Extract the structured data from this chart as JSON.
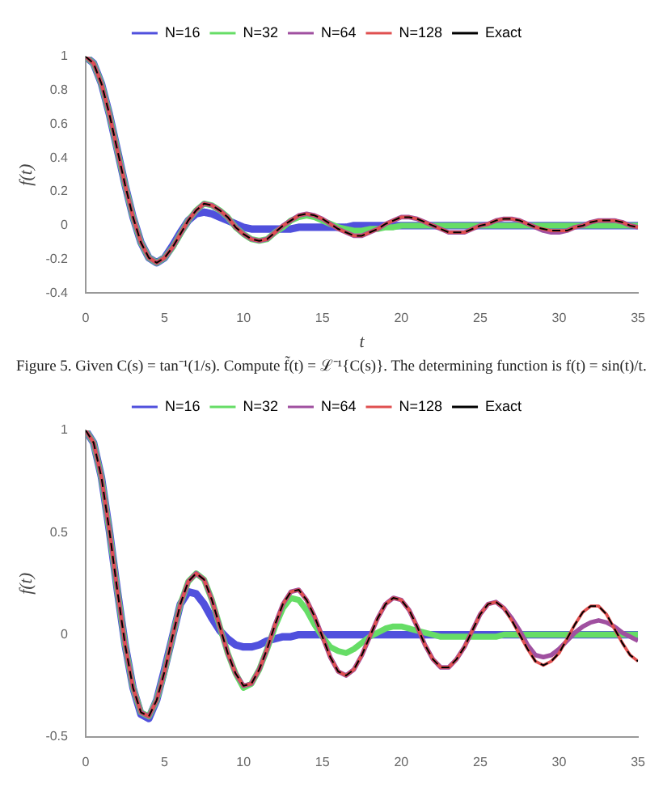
{
  "chart_data": [
    {
      "type": "line",
      "xlabel": "t",
      "ylabel": "f(t)",
      "xlim": [
        0,
        35
      ],
      "xticks": [
        0,
        5,
        10,
        15,
        20,
        25,
        30,
        35
      ],
      "ylim": [
        -0.4,
        1
      ],
      "yticks": [
        -0.4,
        -0.2,
        0,
        0.2,
        0.4,
        0.6,
        0.8,
        1
      ],
      "grid": false,
      "legend": "top",
      "marker": "none",
      "annotations": [
        "Figure 5. Given C(s) = tan⁻¹(1/s). Compute f̃(t) = ℒ⁻¹{C(s)}. The determining function is f(t) = sin(t)/t."
      ],
      "x": [
        0,
        0.5,
        1,
        1.5,
        2,
        2.5,
        3,
        3.5,
        4,
        4.5,
        5,
        5.5,
        6,
        6.5,
        7,
        7.5,
        8,
        8.5,
        9,
        9.5,
        10,
        10.5,
        11,
        11.5,
        12,
        12.5,
        13,
        13.5,
        14,
        14.5,
        15,
        15.5,
        16,
        16.5,
        17,
        17.5,
        18,
        18.5,
        19,
        19.5,
        20,
        20.5,
        21,
        21.5,
        22,
        22.5,
        23,
        23.5,
        24,
        24.5,
        25,
        25.5,
        26,
        26.5,
        27,
        27.5,
        28,
        28.5,
        29,
        29.5,
        30,
        30.5,
        31,
        31.5,
        32,
        32.5,
        33,
        33.5,
        34,
        34.5,
        35
      ],
      "series": [
        {
          "name": "N=16",
          "color": "#5050dd",
          "values": [
            1,
            0.96,
            0.84,
            0.66,
            0.45,
            0.24,
            0.05,
            -0.1,
            -0.19,
            -0.22,
            -0.19,
            -0.12,
            -0.04,
            0.03,
            0.07,
            0.08,
            0.07,
            0.05,
            0.03,
            0.01,
            -0.01,
            -0.02,
            -0.02,
            -0.02,
            -0.02,
            -0.02,
            -0.02,
            -0.01,
            -0.01,
            -0.01,
            -0.01,
            -0.01,
            -0.01,
            -0.01,
            0,
            0,
            0,
            0,
            0,
            0,
            0,
            0,
            0,
            0,
            0,
            0,
            0,
            0,
            0,
            0,
            0,
            0,
            0,
            0,
            0,
            0,
            0,
            0,
            0,
            0,
            0,
            0,
            0,
            0,
            0,
            0,
            0,
            0,
            0,
            0,
            0
          ]
        },
        {
          "name": "N=32",
          "color": "#66dd66",
          "values": [
            1,
            0.96,
            0.84,
            0.66,
            0.45,
            0.24,
            0.05,
            -0.1,
            -0.19,
            -0.22,
            -0.19,
            -0.13,
            -0.05,
            0.03,
            0.09,
            0.13,
            0.12,
            0.09,
            0.05,
            -0.01,
            -0.05,
            -0.08,
            -0.09,
            -0.08,
            -0.04,
            -0.01,
            0.03,
            0.05,
            0.06,
            0.05,
            0.03,
            0.01,
            -0.01,
            -0.02,
            -0.03,
            -0.03,
            -0.02,
            -0.02,
            -0.01,
            -0.01,
            0,
            0,
            0,
            0,
            0,
            0,
            0,
            0,
            0,
            0,
            0,
            0,
            0,
            0,
            0,
            0,
            0,
            0,
            0,
            0,
            0,
            0,
            0,
            0,
            0,
            0,
            0,
            0,
            0,
            0,
            0
          ]
        },
        {
          "name": "N=64",
          "color": "#a050a0",
          "values": [
            1,
            0.96,
            0.84,
            0.66,
            0.45,
            0.24,
            0.05,
            -0.1,
            -0.19,
            -0.22,
            -0.19,
            -0.13,
            -0.05,
            0.03,
            0.09,
            0.13,
            0.12,
            0.09,
            0.05,
            -0.01,
            -0.05,
            -0.08,
            -0.09,
            -0.08,
            -0.04,
            0,
            0.03,
            0.06,
            0.07,
            0.06,
            0.04,
            0.01,
            -0.02,
            -0.04,
            -0.06,
            -0.06,
            -0.04,
            -0.02,
            0.01,
            0.03,
            0.05,
            0.05,
            0.04,
            0.02,
            0,
            -0.02,
            -0.04,
            -0.04,
            -0.04,
            -0.02,
            0,
            0.01,
            0.03,
            0.04,
            0.04,
            0.03,
            0.01,
            -0.01,
            -0.03,
            -0.04,
            -0.04,
            -0.03,
            -0.01,
            0,
            0.02,
            0.03,
            0.03,
            0.03,
            0.02,
            0,
            -0.01
          ]
        },
        {
          "name": "N=128",
          "color": "#e05050",
          "values": [
            1,
            0.96,
            0.84,
            0.66,
            0.45,
            0.24,
            0.05,
            -0.1,
            -0.19,
            -0.22,
            -0.19,
            -0.13,
            -0.05,
            0.03,
            0.09,
            0.13,
            0.12,
            0.09,
            0.05,
            -0.01,
            -0.05,
            -0.08,
            -0.09,
            -0.08,
            -0.04,
            0,
            0.03,
            0.06,
            0.07,
            0.06,
            0.04,
            0.01,
            -0.02,
            -0.04,
            -0.06,
            -0.06,
            -0.04,
            -0.02,
            0.01,
            0.03,
            0.05,
            0.05,
            0.04,
            0.02,
            0,
            -0.02,
            -0.04,
            -0.04,
            -0.04,
            -0.02,
            0,
            0.01,
            0.03,
            0.04,
            0.04,
            0.03,
            0.01,
            -0.01,
            -0.02,
            -0.03,
            -0.03,
            -0.03,
            -0.01,
            0,
            0.02,
            0.03,
            0.03,
            0.03,
            0.02,
            0,
            -0.01
          ]
        },
        {
          "name": "Exact",
          "color": "#000000",
          "line_style": "dashed",
          "values": [
            1,
            0.96,
            0.84,
            0.66,
            0.45,
            0.24,
            0.05,
            -0.1,
            -0.19,
            -0.22,
            -0.19,
            -0.13,
            -0.05,
            0.03,
            0.09,
            0.13,
            0.12,
            0.09,
            0.05,
            -0.01,
            -0.05,
            -0.08,
            -0.09,
            -0.08,
            -0.04,
            0,
            0.03,
            0.06,
            0.07,
            0.06,
            0.04,
            0.01,
            -0.02,
            -0.04,
            -0.06,
            -0.06,
            -0.04,
            -0.02,
            0.01,
            0.03,
            0.05,
            0.05,
            0.04,
            0.02,
            0,
            -0.02,
            -0.04,
            -0.04,
            -0.04,
            -0.02,
            0,
            0.01,
            0.03,
            0.04,
            0.04,
            0.03,
            0.01,
            -0.01,
            -0.02,
            -0.03,
            -0.03,
            -0.03,
            -0.01,
            0,
            0.02,
            0.03,
            0.03,
            0.03,
            0.02,
            0,
            -0.01
          ]
        }
      ]
    },
    {
      "type": "line",
      "ylabel": "f(t)",
      "xlim": [
        0,
        35
      ],
      "xticks": [
        0,
        5,
        10,
        15,
        20,
        25,
        30,
        35
      ],
      "ylim": [
        -0.5,
        1
      ],
      "yticks": [
        -0.5,
        0,
        0.5,
        1
      ],
      "grid": false,
      "legend": "top",
      "marker": "none",
      "x": [
        0,
        0.5,
        1,
        1.5,
        2,
        2.5,
        3,
        3.5,
        4,
        4.5,
        5,
        5.5,
        6,
        6.5,
        7,
        7.5,
        8,
        8.5,
        9,
        9.5,
        10,
        10.5,
        11,
        11.5,
        12,
        12.5,
        13,
        13.5,
        14,
        14.5,
        15,
        15.5,
        16,
        16.5,
        17,
        17.5,
        18,
        18.5,
        19,
        19.5,
        20,
        20.5,
        21,
        21.5,
        22,
        22.5,
        23,
        23.5,
        24,
        24.5,
        25,
        25.5,
        26,
        26.5,
        27,
        27.5,
        28,
        28.5,
        29,
        29.5,
        30,
        30.5,
        31,
        31.5,
        32,
        32.5,
        33,
        33.5,
        34,
        34.5,
        35
      ],
      "series": [
        {
          "name": "N=16",
          "color": "#5050dd",
          "values": [
            1,
            0.94,
            0.77,
            0.51,
            0.22,
            -0.05,
            -0.26,
            -0.39,
            -0.41,
            -0.32,
            -0.17,
            -0.01,
            0.15,
            0.21,
            0.2,
            0.15,
            0.08,
            0.02,
            -0.02,
            -0.05,
            -0.06,
            -0.06,
            -0.05,
            -0.03,
            -0.02,
            -0.01,
            -0.01,
            0,
            0,
            0,
            0,
            0,
            0,
            0,
            0,
            0,
            0,
            0,
            0,
            0,
            0,
            0,
            0,
            0,
            0,
            0,
            0,
            0,
            0,
            0,
            0,
            0,
            0,
            0,
            0,
            0,
            0,
            0,
            0,
            0,
            0,
            0,
            0,
            0,
            0,
            0,
            0,
            0,
            0,
            0,
            0
          ]
        },
        {
          "name": "N=32",
          "color": "#66dd66",
          "values": [
            1,
            0.94,
            0.77,
            0.51,
            0.22,
            -0.05,
            -0.26,
            -0.38,
            -0.4,
            -0.32,
            -0.18,
            -0.01,
            0.15,
            0.26,
            0.3,
            0.27,
            0.17,
            0.04,
            -0.09,
            -0.19,
            -0.26,
            -0.24,
            -0.17,
            -0.07,
            0.04,
            0.13,
            0.18,
            0.17,
            0.12,
            0.05,
            -0.01,
            -0.06,
            -0.08,
            -0.09,
            -0.07,
            -0.04,
            -0.01,
            0.01,
            0.03,
            0.04,
            0.04,
            0.03,
            0.02,
            0.01,
            0,
            -0.01,
            -0.01,
            -0.01,
            -0.01,
            -0.01,
            -0.01,
            -0.01,
            -0.01,
            0,
            0,
            0,
            0,
            0,
            0,
            0,
            0,
            0,
            0,
            0,
            0,
            0,
            0,
            0,
            0,
            0,
            0
          ]
        },
        {
          "name": "N=64",
          "color": "#a050a0",
          "values": [
            1,
            0.94,
            0.77,
            0.51,
            0.22,
            -0.05,
            -0.26,
            -0.38,
            -0.4,
            -0.32,
            -0.18,
            -0.01,
            0.15,
            0.26,
            0.3,
            0.27,
            0.17,
            0.04,
            -0.09,
            -0.19,
            -0.25,
            -0.24,
            -0.17,
            -0.07,
            0.05,
            0.15,
            0.21,
            0.22,
            0.17,
            0.09,
            -0.01,
            -0.11,
            -0.18,
            -0.2,
            -0.17,
            -0.1,
            -0.01,
            0.08,
            0.15,
            0.18,
            0.17,
            0.12,
            0.04,
            -0.05,
            -0.12,
            -0.16,
            -0.16,
            -0.12,
            -0.06,
            0.02,
            0.1,
            0.15,
            0.16,
            0.13,
            0.08,
            0.02,
            -0.05,
            -0.1,
            -0.11,
            -0.1,
            -0.07,
            -0.03,
            0.01,
            0.04,
            0.06,
            0.07,
            0.06,
            0.04,
            0.01,
            -0.01,
            -0.03
          ]
        },
        {
          "name": "N=128",
          "color": "#e05050",
          "values": [
            1,
            0.94,
            0.77,
            0.51,
            0.22,
            -0.05,
            -0.26,
            -0.38,
            -0.4,
            -0.32,
            -0.18,
            -0.01,
            0.15,
            0.26,
            0.3,
            0.27,
            0.17,
            0.04,
            -0.09,
            -0.19,
            -0.25,
            -0.24,
            -0.17,
            -0.07,
            0.05,
            0.15,
            0.21,
            0.22,
            0.17,
            0.09,
            -0.01,
            -0.11,
            -0.18,
            -0.2,
            -0.17,
            -0.1,
            -0.01,
            0.08,
            0.15,
            0.18,
            0.17,
            0.12,
            0.04,
            -0.05,
            -0.12,
            -0.16,
            -0.16,
            -0.12,
            -0.06,
            0.02,
            0.1,
            0.15,
            0.16,
            0.13,
            0.07,
            0,
            -0.07,
            -0.13,
            -0.15,
            -0.13,
            -0.09,
            -0.02,
            0.05,
            0.11,
            0.14,
            0.14,
            0.1,
            0.03,
            -0.04,
            -0.1,
            -0.13
          ]
        },
        {
          "name": "Exact",
          "color": "#000000",
          "line_style": "dashed",
          "values": [
            1,
            0.94,
            0.77,
            0.51,
            0.22,
            -0.05,
            -0.26,
            -0.38,
            -0.4,
            -0.32,
            -0.18,
            -0.01,
            0.15,
            0.26,
            0.3,
            0.27,
            0.17,
            0.04,
            -0.09,
            -0.19,
            -0.25,
            -0.24,
            -0.17,
            -0.07,
            0.05,
            0.15,
            0.21,
            0.22,
            0.17,
            0.09,
            -0.01,
            -0.11,
            -0.18,
            -0.2,
            -0.17,
            -0.1,
            -0.01,
            0.08,
            0.15,
            0.18,
            0.17,
            0.12,
            0.04,
            -0.05,
            -0.12,
            -0.16,
            -0.16,
            -0.12,
            -0.06,
            0.02,
            0.1,
            0.15,
            0.16,
            0.13,
            0.07,
            0,
            -0.07,
            -0.13,
            -0.15,
            -0.13,
            -0.09,
            -0.02,
            0.05,
            0.11,
            0.14,
            0.14,
            0.1,
            0.03,
            -0.04,
            -0.1,
            -0.13
          ]
        }
      ]
    }
  ]
}
